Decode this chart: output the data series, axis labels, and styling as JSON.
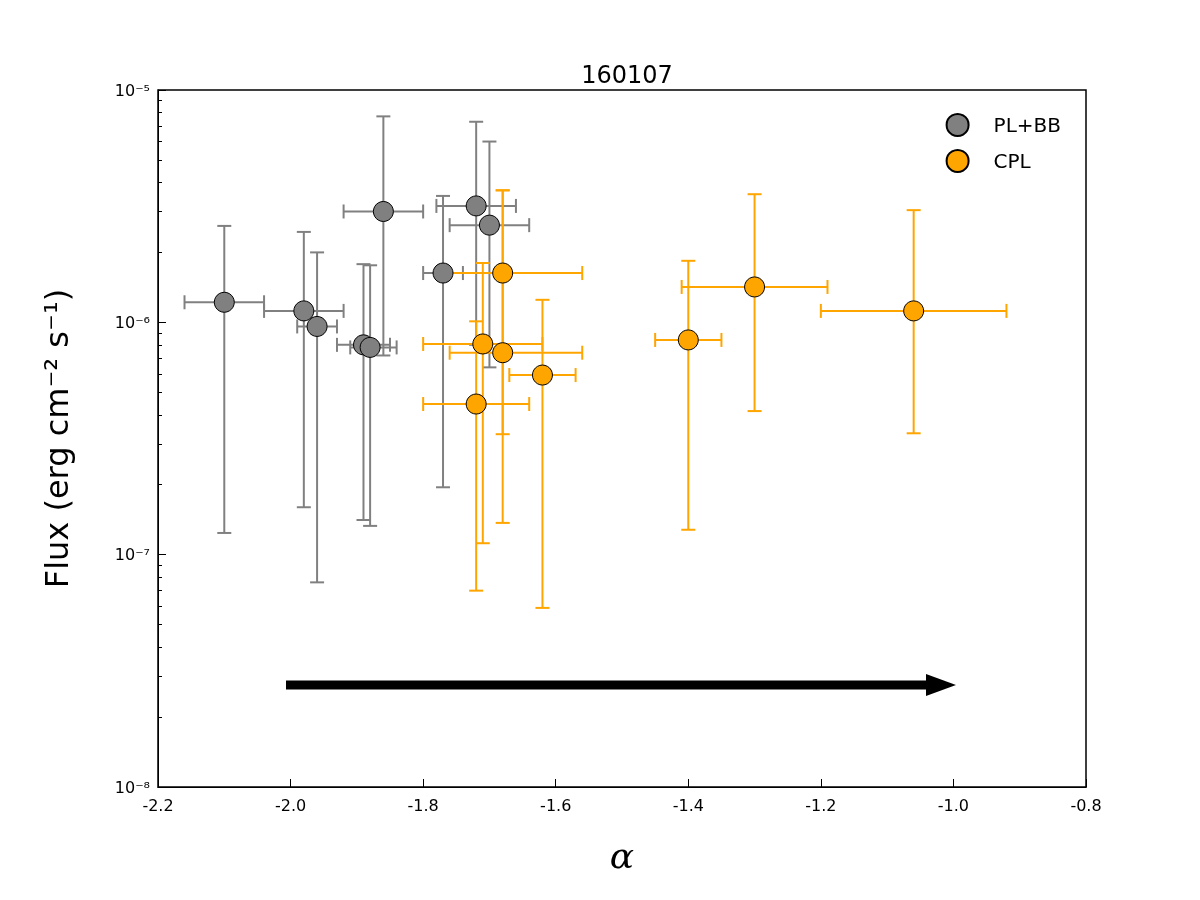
{
  "chart_data": {
    "type": "scatter",
    "title": "160107",
    "xlabel": "α",
    "ylabel": "Flux (erg cm⁻² s⁻¹)",
    "xlim": [
      -2.2,
      -0.8
    ],
    "xticks": [
      -2.2,
      {
        "value": -2,
        "label": "-2.0"
      },
      -1.8,
      -1.6,
      -1.4,
      -1.2,
      {
        "value": -1,
        "label": "-1.0"
      },
      -0.8
    ],
    "ylim": [
      1e-08,
      1e-05
    ],
    "yticks": [
      {
        "value": 1e-08,
        "label": "10⁻⁸"
      },
      {
        "value": 1e-07,
        "label": "10⁻⁷"
      },
      {
        "value": 1e-06,
        "label": "10⁻⁶"
      },
      {
        "value": 1e-05,
        "label": "10⁻⁵"
      }
    ],
    "log": "y",
    "grid": false,
    "legend": "top right",
    "marker": "circle",
    "series": [
      {
        "name": "PL+BB",
        "color": "#808080",
        "x": [
          -2.1,
          -1.98,
          -1.96,
          -1.89,
          -1.88,
          -1.86,
          -1.77,
          -1.72,
          -1.7
        ],
        "values": [
          1.22e-06,
          1.12e-06,
          9.6e-07,
          8e-07,
          7.8e-07,
          3e-06,
          1.63e-06,
          3.17e-06,
          2.62e-06
        ],
        "errors": [
          [
            1.24e-07,
            2.6e-06
          ],
          [
            1.6e-07,
            2.45e-06
          ],
          [
            7.6e-08,
            2e-06
          ],
          [
            1.41e-07,
            1.78e-06
          ],
          [
            1.33e-07,
            1.76e-06
          ],
          [
            7.2e-07,
            7.7e-06
          ],
          [
            1.95e-07,
            3.5e-06
          ],
          [
            8e-07,
            7.3e-06
          ],
          [
            6.4e-07,
            6e-06
          ]
        ],
        "xerrors": [
          [
            -2.16,
            -2.04
          ],
          [
            -2.04,
            -1.92
          ],
          [
            -1.99,
            -1.93
          ],
          [
            -1.93,
            -1.85
          ],
          [
            -1.91,
            -1.84
          ],
          [
            -1.92,
            -1.8
          ],
          [
            -1.8,
            -1.74
          ],
          [
            -1.78,
            -1.66
          ],
          [
            -1.76,
            -1.64
          ]
        ]
      },
      {
        "name": "CPL",
        "color": "#ffa500",
        "x": [
          -1.68,
          -1.71,
          -1.68,
          -1.72,
          -1.62,
          -1.4,
          -1.3,
          -1.06
        ],
        "values": [
          1.63e-06,
          8.07e-07,
          7.4e-07,
          4.45e-07,
          5.93e-07,
          8.4e-07,
          1.42e-06,
          1.12e-06
        ],
        "errors": [
          [
            3.3e-07,
            3.7e-06
          ],
          [
            1.12e-07,
            1.8e-06
          ],
          [
            1.37e-07,
            3.7e-06
          ],
          [
            7e-08,
            1.01e-06
          ],
          [
            5.9e-08,
            1.25e-06
          ],
          [
            1.28e-07,
            1.84e-06
          ],
          [
            4.15e-07,
            3.56e-06
          ],
          [
            3.33e-07,
            3.04e-06
          ]
        ],
        "xerrors": [
          [
            -1.76,
            -1.56
          ],
          [
            -1.8,
            -1.62
          ],
          [
            -1.76,
            -1.56
          ],
          [
            -1.8,
            -1.64
          ],
          [
            -1.67,
            -1.57
          ],
          [
            -1.45,
            -1.35
          ],
          [
            -1.41,
            -1.19
          ],
          [
            -1.2,
            -0.92
          ]
        ]
      }
    ]
  }
}
